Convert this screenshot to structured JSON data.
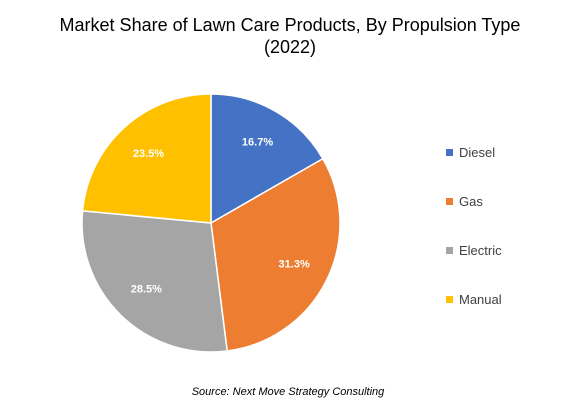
{
  "chart_data": {
    "type": "pie",
    "title": "Market Share of Lawn Care Products, By Propulsion Type (2022)",
    "categories": [
      "Diesel",
      "Gas",
      "Electric",
      "Manual"
    ],
    "values": [
      16.7,
      31.3,
      28.5,
      23.5
    ],
    "value_labels": [
      "16.7%",
      "31.3%",
      "28.5%",
      "23.5%"
    ],
    "colors": [
      "#4472C4",
      "#ED7D31",
      "#A5A5A5",
      "#FFC000"
    ],
    "legend_position": "right"
  },
  "source": "Source:  Next Move Strategy Consulting"
}
